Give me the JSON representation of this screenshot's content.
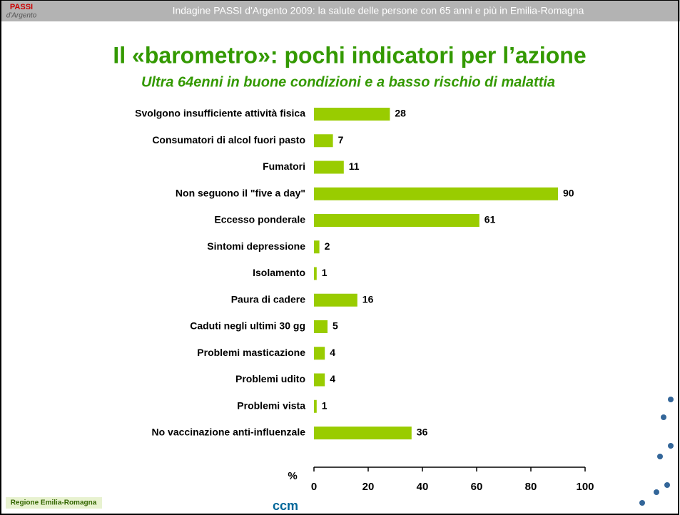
{
  "header": {
    "text": "Indagine PASSI d'Argento 2009: la salute delle persone con 65 anni e più in Emilia-Romagna",
    "logo_top": "PASSI",
    "logo_bottom": "d'Argento"
  },
  "footer": {
    "region": "Regione Emilia-Romagna",
    "ccm": "ccm"
  },
  "chart_data": {
    "type": "bar",
    "orientation": "horizontal",
    "title": "Il «barometro»: pochi indicatori per l’azione",
    "subtitle": "Ultra 64enni in buone condizioni e a basso rischio di malattia",
    "x_label": "%",
    "categories": [
      "Svolgono insufficiente attività fisica",
      "Consumatori di alcol fuori pasto",
      "Fumatori",
      "Non seguono il \"five a day\"",
      "Eccesso ponderale",
      "Sintomi depressione",
      "Isolamento",
      "Paura di cadere",
      "Caduti negli ultimi 30 gg",
      "Problemi masticazione",
      "Problemi udito",
      "Problemi vista",
      "No vaccinazione anti-influenzale"
    ],
    "values": [
      28,
      7,
      11,
      90,
      61,
      2,
      1,
      16,
      5,
      4,
      4,
      1,
      36
    ],
    "color": "#99cc00",
    "xlim": [
      0,
      100
    ],
    "xticks": [
      0,
      20,
      40,
      60,
      80,
      100
    ],
    "grid": false
  }
}
